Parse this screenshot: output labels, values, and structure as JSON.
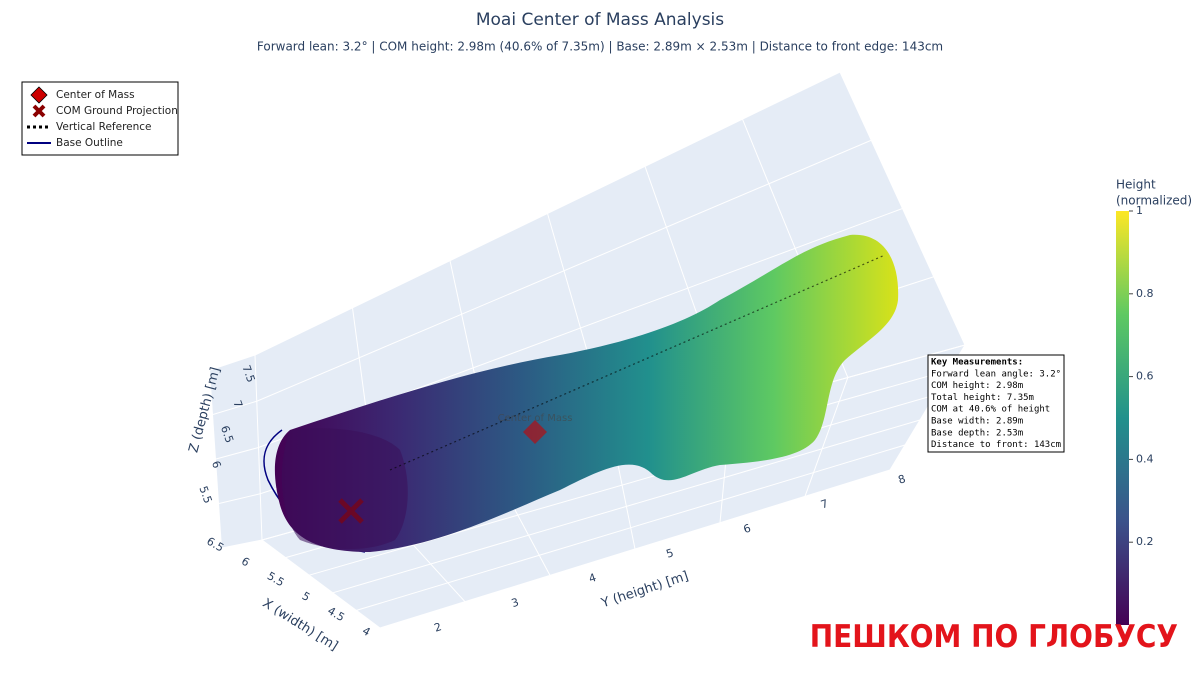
{
  "chart_data": {
    "type": "mesh3d",
    "title": "Moai Center of Mass Analysis",
    "subtitle": "Forward lean: 3.2° | COM height: 2.98m (40.6% of 7.35m) | Base: 2.89m × 2.53m | Distance to front edge: 143cm",
    "xlabel": "X (width) [m]",
    "ylabel": "Y (height) [m]",
    "zlabel": "Z (depth) [m]",
    "xlim": [
      4,
      6.5
    ],
    "xticks": [
      4,
      4.5,
      5,
      5.5,
      6,
      6.5
    ],
    "ylim": [
      2,
      8
    ],
    "yticks": [
      2,
      3,
      4,
      5,
      6,
      7,
      8
    ],
    "zlim": [
      5.5,
      7.5
    ],
    "zticks": [
      5.5,
      6,
      6.5,
      7,
      7.5
    ],
    "grid": true,
    "legend_position": "upper-left",
    "legend": [
      {
        "name": "Center of Mass",
        "color": "#cc0000",
        "symbol": "diamond"
      },
      {
        "name": "COM Ground Projection",
        "color": "#8b0000",
        "symbol": "x"
      },
      {
        "name": "Vertical Reference",
        "color": "#000000",
        "symbol": "dotted-line"
      },
      {
        "name": "Base Outline",
        "color": "#000080",
        "symbol": "line"
      }
    ],
    "marker_label": "Center of Mass",
    "colorscale": "Viridis",
    "colorbar_title": [
      "Height",
      "(normalized)"
    ],
    "clim": [
      0,
      1
    ],
    "colorbar_ticks": [
      0.2,
      0.4,
      0.6,
      0.8,
      1
    ],
    "annotation": [
      "Key Measurements:",
      "Forward lean angle: 3.2°",
      "COM height: 2.98m",
      "Total height: 7.35m",
      "COM at 40.6% of height",
      "Base width: 2.89m",
      "Base depth: 2.53m",
      "Distance to front: 143cm"
    ],
    "watermark": "ПЕШКОМ ПО ГЛОБУСУ"
  }
}
